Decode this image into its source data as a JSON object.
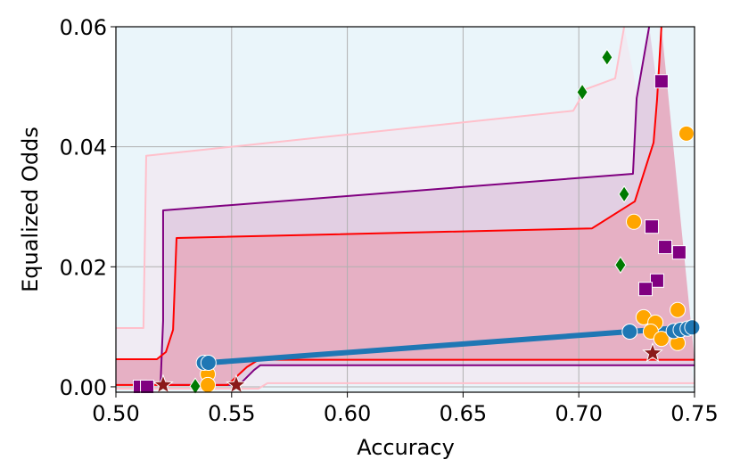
{
  "chart_data": {
    "type": "scatter",
    "xlabel": "Accuracy",
    "ylabel": "Equalized Odds",
    "xlim": [
      0.5,
      0.75
    ],
    "ylim": [
      -0.0009,
      0.06
    ],
    "xticks": [
      {
        "value": 0.5,
        "label": "0.50"
      },
      {
        "value": 0.55,
        "label": "0.55"
      },
      {
        "value": 0.6,
        "label": "0.60"
      },
      {
        "value": 0.65,
        "label": "0.65"
      },
      {
        "value": 0.7,
        "label": "0.70"
      },
      {
        "value": 0.75,
        "label": "0.75"
      }
    ],
    "yticks": [
      {
        "value": 0,
        "label": "0.00"
      },
      {
        "value": 0.02,
        "label": "0.02"
      },
      {
        "value": 0.04,
        "label": "0.04"
      },
      {
        "value": 0.06,
        "label": "0.06"
      }
    ],
    "grid": true,
    "background": "#eaf5fa",
    "bands": [
      {
        "color": "#ffc0cb",
        "fill": "#f0ebf3",
        "upper": {
          "x": [
            0.5,
            0.5119,
            0.5131,
            0.6976,
            0.703,
            0.7157,
            0.7196
          ],
          "y": [
            0.0098,
            0.0098,
            0.0385,
            0.046,
            0.0496,
            0.0514,
            0.06
          ]
        },
        "lower": {
          "x": [
            0.5,
            0.5616,
            0.5655,
            0.75
          ],
          "y": [
            -0.0003,
            -0.0003,
            0.0006,
            0.0006
          ]
        }
      },
      {
        "color": "#800080",
        "fill": "#e2cfe3",
        "upper": {
          "x": [
            0.5193,
            0.5204,
            0.5204,
            0.7234,
            0.725,
            0.7304
          ],
          "y": [
            0.0006,
            0.011,
            0.0294,
            0.0355,
            0.0481,
            0.06
          ]
        },
        "lower": {
          "x": [
            0.5193,
            0.5532,
            0.5597,
            0.5624,
            0.75
          ],
          "y": [
            0.0003,
            0.0003,
            0.0028,
            0.0036,
            0.0036
          ]
        }
      },
      {
        "color": "#ff0000",
        "fill": "#e6b0c4",
        "upper": {
          "x": [
            0.5,
            0.5177,
            0.5216,
            0.5247,
            0.5262,
            0.7057,
            0.7242,
            0.7323,
            0.7338,
            0.7357
          ],
          "y": [
            0.0046,
            0.0046,
            0.0058,
            0.0095,
            0.0248,
            0.0264,
            0.0309,
            0.0407,
            0.0478,
            0.06
          ]
        },
        "lower": {
          "x": [
            0.5,
            0.5482,
            0.5566,
            0.5616,
            0.75
          ],
          "y": [
            0.0003,
            0.0003,
            0.0033,
            0.0045,
            0.0045
          ]
        }
      }
    ],
    "line": {
      "color": "#1f77b4",
      "x": [
        0.54,
        0.722,
        0.75
      ],
      "y": [
        0.004,
        0.0092,
        0.01
      ]
    },
    "series": [
      {
        "marker": "diamond",
        "color": "#007a00",
        "x": [
          0.7122,
          0.7015,
          0.7196,
          0.718,
          0.5343
        ],
        "y": [
          0.0549,
          0.0491,
          0.0321,
          0.0203,
          0.0001
        ]
      },
      {
        "marker": "square",
        "color": "#800080",
        "x": [
          0.7357,
          0.7315,
          0.7373,
          0.7434,
          0.7338,
          0.7288,
          0.5104,
          0.5135
        ],
        "y": [
          0.0509,
          0.0267,
          0.0233,
          0.0224,
          0.0177,
          0.0163,
          0.0,
          0.0
        ]
      },
      {
        "marker": "circle",
        "color": "#ffa500",
        "x": [
          0.7238,
          0.7465,
          0.728,
          0.7331,
          0.7311,
          0.7357,
          0.7427,
          0.7427,
          0.5397,
          0.5397,
          0.5397
        ],
        "y": [
          0.0275,
          0.0422,
          0.0116,
          0.0107,
          0.0092,
          0.008,
          0.0128,
          0.0073,
          0.0039,
          0.0021,
          0.0003
        ]
      },
      {
        "marker": "circle",
        "color": "#1f77b4",
        "x": [
          0.538,
          0.54,
          0.722,
          0.741,
          0.744,
          0.747,
          0.749
        ],
        "y": [
          0.004,
          0.004,
          0.0092,
          0.0093,
          0.0095,
          0.0097,
          0.0099
        ]
      },
      {
        "marker": "star",
        "color": "#8b1a1a",
        "x": [
          0.7319,
          0.5204,
          0.552
        ],
        "y": [
          0.0056,
          0.0003,
          0.0003
        ]
      }
    ]
  }
}
